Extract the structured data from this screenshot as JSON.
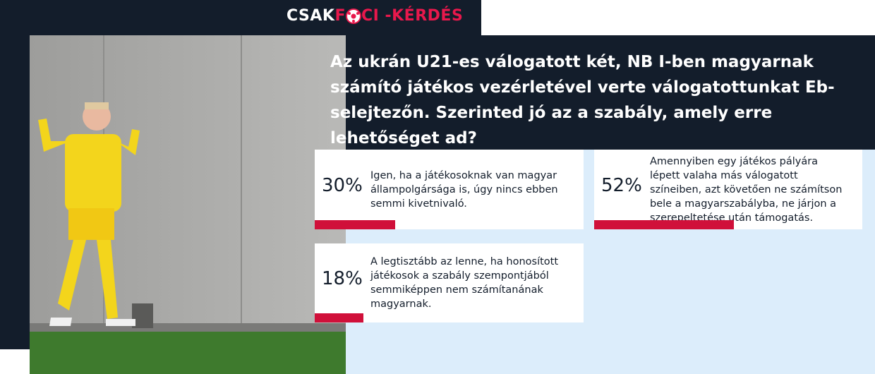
{
  "logo": {
    "part1": "CSAK",
    "part2": "F",
    "part3": "CI -KÉRDÉS"
  },
  "poll": {
    "question": "Az ukrán U21-es válogatott két, NB I-ben magyarnak számító játékos vezérletével verte válogatottunkat Eb-selejtezőn. Szerinted jó az a szabály, amely erre lehetőséget ad?",
    "options": [
      {
        "percent": 30,
        "percent_label": "30%",
        "text": "Igen, ha a játékosoknak van magyar állampolgársága is, úgy nincs ebben semmi kivetnivaló."
      },
      {
        "percent": 52,
        "percent_label": "52%",
        "text": "Amennyiben egy játékos pályára lépett valaha más válogatott színeiben, azt követően ne számítson bele a magyarszabályba, ne járjon a szerepeltetése után támogatás."
      },
      {
        "percent": 18,
        "percent_label": "18%",
        "text": "A legtisztább az lenne, ha honosított játékosok a szabály szempontjából semmiképpen nem számítanának magyarnak."
      }
    ]
  }
}
